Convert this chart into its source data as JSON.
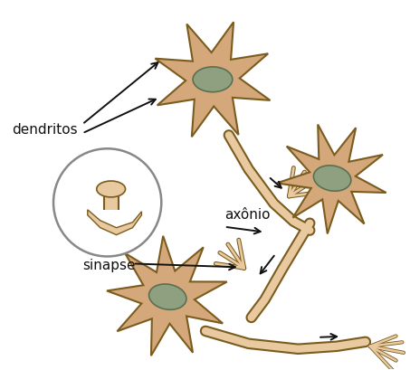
{
  "bg_color": "#ffffff",
  "neuron_body_color": "#d4a87a",
  "neuron_body_edge": "#7a5c1e",
  "neuron_light_color": "#e8c9a0",
  "nucleus_color": "#8fa080",
  "nucleus_edge": "#5a7050",
  "axon_fill": "#e8c9a0",
  "axon_edge": "#7a5c1e",
  "synapse_circle_edge": "#888888",
  "arrow_color": "#111111",
  "text_color": "#111111",
  "label_dendritos": "dendritos",
  "label_axonio": "axônio",
  "label_sinapse": "sinapse",
  "figsize": [
    4.53,
    4.1
  ],
  "dpi": 100
}
